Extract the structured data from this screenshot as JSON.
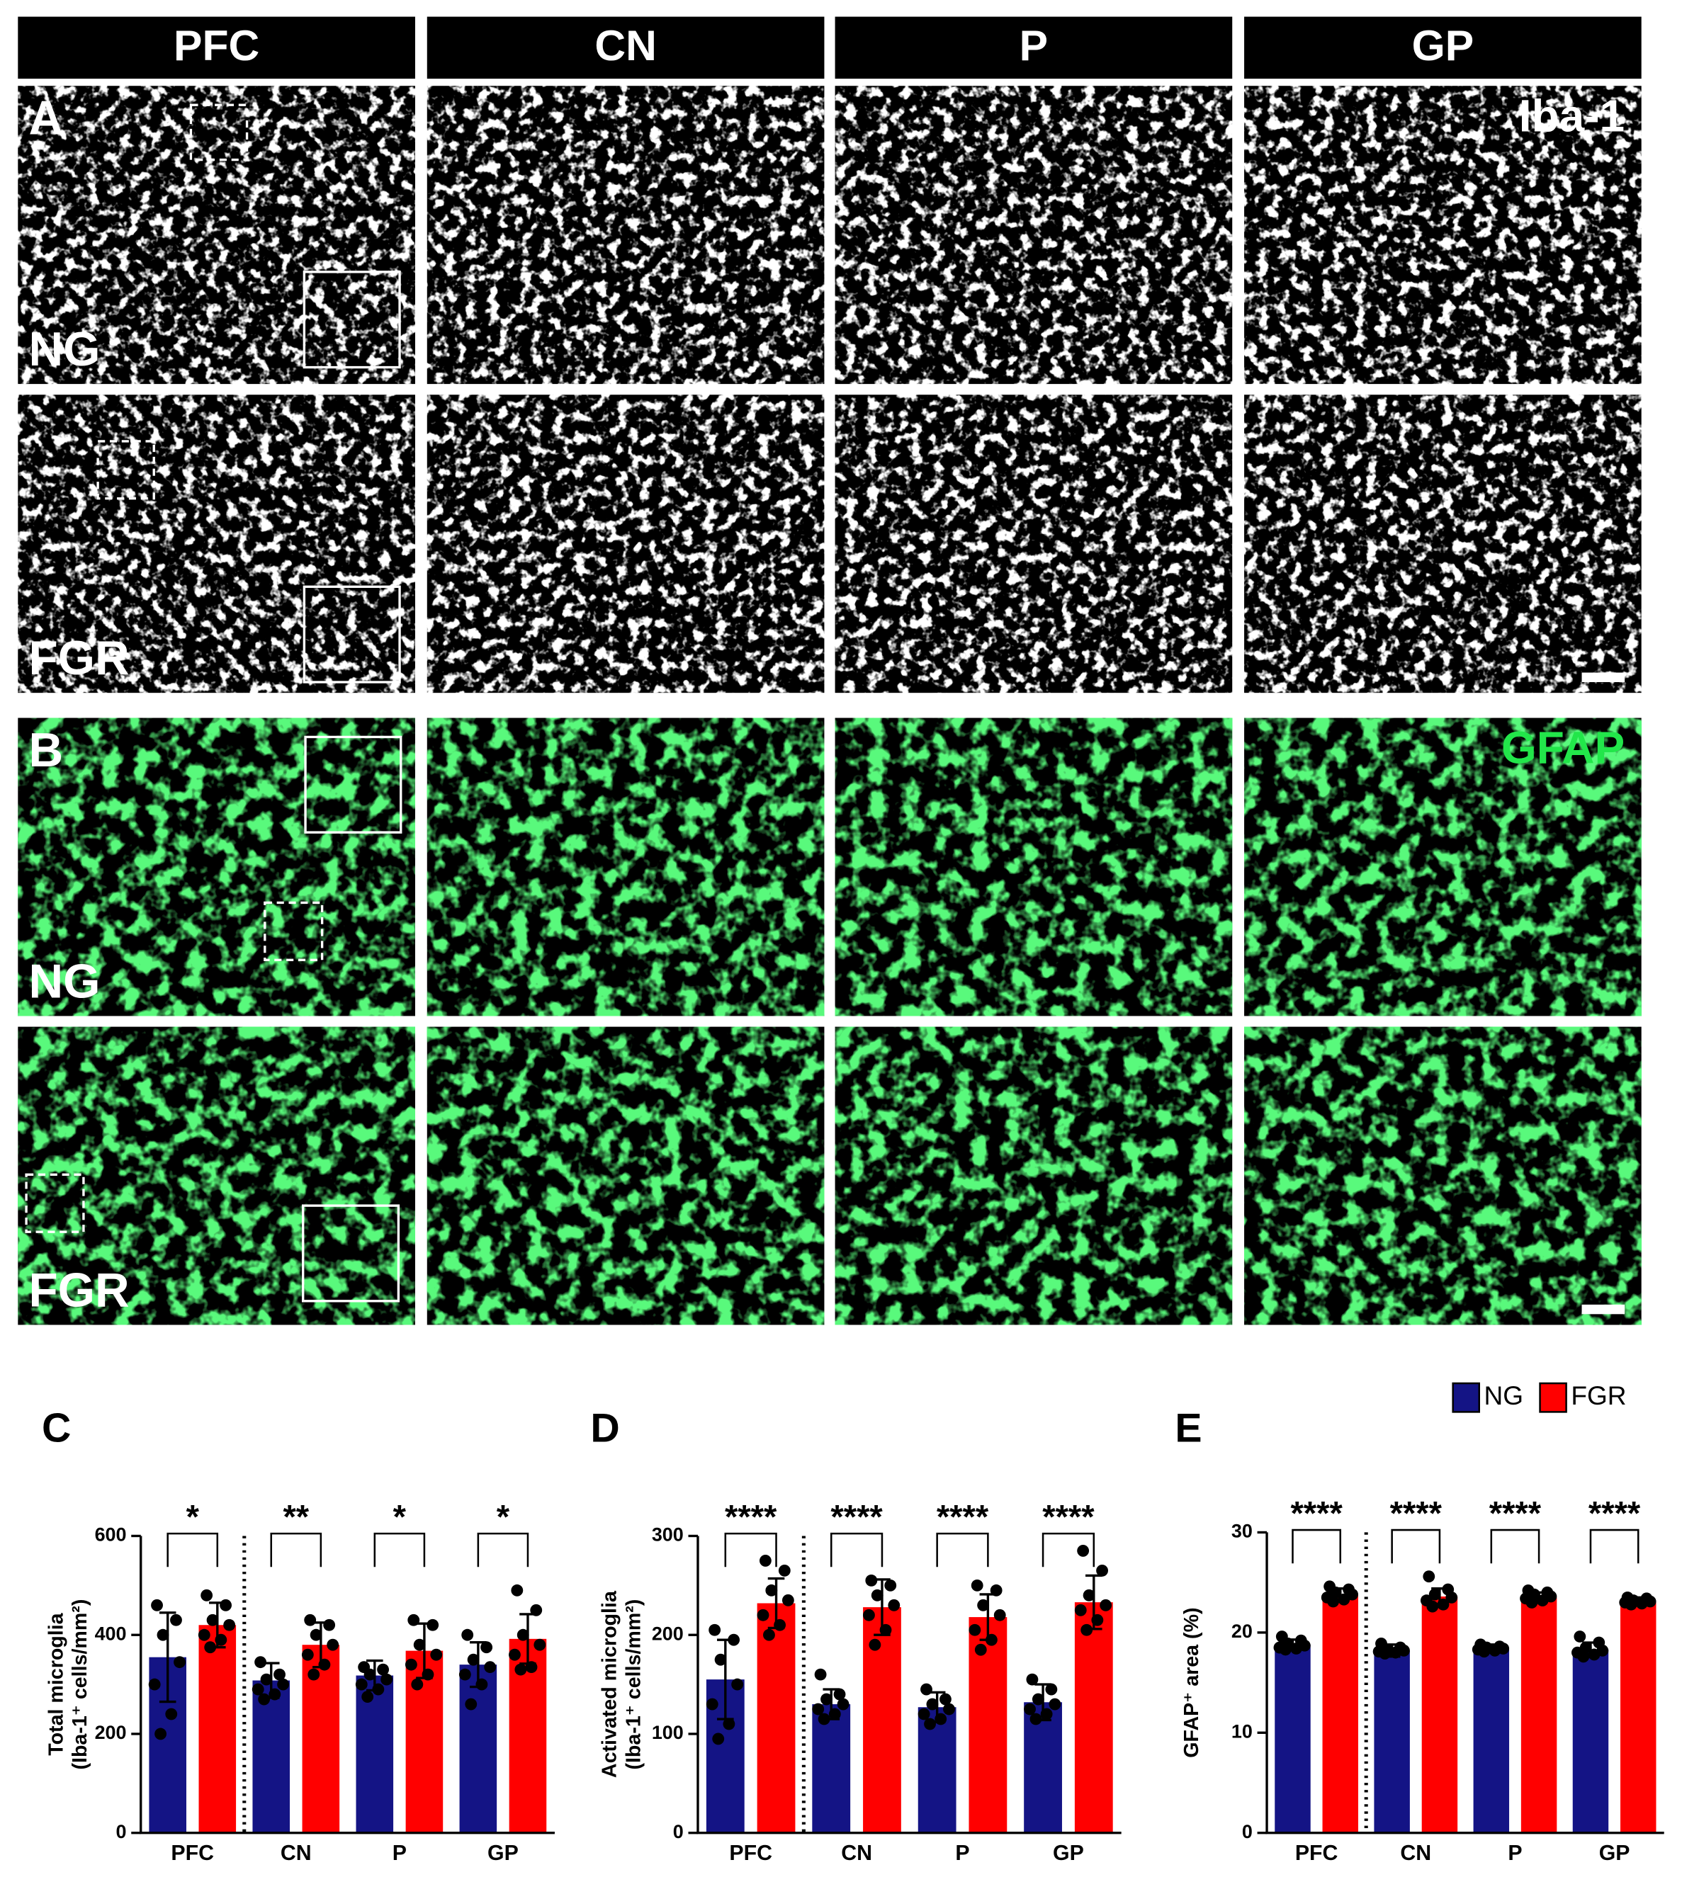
{
  "figure": {
    "columns": [
      "PFC",
      "CN",
      "P",
      "GP"
    ],
    "panels": [
      {
        "label": "A",
        "marker": "Iba-1",
        "rows": [
          "NG",
          "FGR"
        ]
      },
      {
        "label": "B",
        "marker": "GFAP",
        "rows": [
          "NG",
          "FGR"
        ]
      }
    ]
  },
  "chart_data": [
    {
      "type": "bar",
      "panel_label": "C",
      "y_label": [
        "Total  microglia",
        "(Iba-1⁺ cells/mm²)"
      ],
      "categories": [
        "PFC",
        "CN",
        "P",
        "GP"
      ],
      "series": [
        {
          "name": "NG",
          "color": "#141485",
          "values": [
            355,
            308,
            318,
            340
          ],
          "errors": [
            90,
            35,
            30,
            45
          ],
          "points": [
            [
              460,
              430,
              400,
              345,
              300,
              240,
              200
            ],
            [
              345,
              320,
              310,
              300,
              290,
              280,
              270
            ],
            [
              335,
              330,
              320,
              310,
              300,
              290,
              275
            ],
            [
              400,
              375,
              350,
              335,
              320,
              300,
              260
            ]
          ]
        },
        {
          "name": "FGR",
          "color": "#ff0000",
          "values": [
            420,
            380,
            368,
            392
          ],
          "errors": [
            45,
            45,
            55,
            50
          ],
          "points": [
            [
              480,
              460,
              430,
              420,
              400,
              390,
              375
            ],
            [
              430,
              420,
              400,
              380,
              360,
              340,
              320
            ],
            [
              430,
              420,
              380,
              360,
              340,
              320,
              300
            ],
            [
              490,
              450,
              400,
              380,
              360,
              335,
              330
            ]
          ]
        }
      ],
      "ylim": [
        0,
        600
      ],
      "yticks": [
        0,
        200,
        400,
        600
      ],
      "significance": [
        "*",
        "**",
        "*",
        "*"
      ]
    },
    {
      "type": "bar",
      "panel_label": "D",
      "y_label": [
        "Activated microglia",
        "(Iba-1⁺ cells/mm²)"
      ],
      "categories": [
        "PFC",
        "CN",
        "P",
        "GP"
      ],
      "series": [
        {
          "name": "NG",
          "color": "#141485",
          "values": [
            155,
            130,
            127,
            132
          ],
          "errors": [
            40,
            15,
            15,
            18
          ],
          "points": [
            [
              205,
              195,
              175,
              150,
              130,
              110,
              95
            ],
            [
              160,
              140,
              135,
              130,
              125,
              120,
              115
            ],
            [
              145,
              135,
              130,
              125,
              120,
              115,
              110
            ],
            [
              155,
              145,
              135,
              130,
              125,
              120,
              115
            ]
          ]
        },
        {
          "name": "FGR",
          "color": "#ff0000",
          "values": [
            232,
            228,
            218,
            233
          ],
          "errors": [
            25,
            28,
            23,
            27
          ],
          "points": [
            [
              275,
              265,
              245,
              235,
              220,
              210,
              200
            ],
            [
              255,
              250,
              240,
              230,
              220,
              205,
              190
            ],
            [
              250,
              245,
              230,
              220,
              205,
              195,
              185
            ],
            [
              285,
              265,
              240,
              230,
              225,
              215,
              205
            ]
          ]
        }
      ],
      "ylim": [
        0,
        300
      ],
      "yticks": [
        0,
        100,
        200,
        300
      ],
      "significance": [
        "****",
        "****",
        "****",
        "****"
      ]
    },
    {
      "type": "bar",
      "panel_label": "E",
      "y_label": [
        "GFAP⁺ area (%)"
      ],
      "categories": [
        "PFC",
        "CN",
        "P",
        "GP"
      ],
      "series": [
        {
          "name": "NG",
          "color": "#141485",
          "values": [
            18.8,
            18.2,
            18.4,
            18.3
          ],
          "errors": [
            0.5,
            0.6,
            0.4,
            0.7
          ],
          "points": [
            [
              19.6,
              19.2,
              18.9,
              18.7,
              18.5,
              18.4,
              18.3
            ],
            [
              18.9,
              18.5,
              18.3,
              18.2,
              18.1,
              18.0,
              17.9
            ],
            [
              18.8,
              18.6,
              18.5,
              18.4,
              18.3,
              18.2,
              18.1
            ],
            [
              19.6,
              19.0,
              18.5,
              18.2,
              18.0,
              17.8,
              17.6
            ]
          ]
        },
        {
          "name": "FGR",
          "color": "#ff0000",
          "values": [
            23.8,
            23.6,
            23.5,
            23.1
          ],
          "errors": [
            0.6,
            0.8,
            0.5,
            0.4
          ],
          "points": [
            [
              24.6,
              24.3,
              24.0,
              23.8,
              23.5,
              23.3,
              23.1
            ],
            [
              25.6,
              24.3,
              23.8,
              23.5,
              23.2,
              22.8,
              22.6
            ],
            [
              24.2,
              24.0,
              23.8,
              23.6,
              23.4,
              23.2,
              23.0
            ],
            [
              23.5,
              23.4,
              23.2,
              23.1,
              23.0,
              22.9,
              22.8
            ]
          ]
        }
      ],
      "ylim": [
        0,
        30
      ],
      "yticks": [
        0,
        10,
        20,
        30
      ],
      "significance": [
        "****",
        "****",
        "****",
        "****"
      ]
    }
  ]
}
